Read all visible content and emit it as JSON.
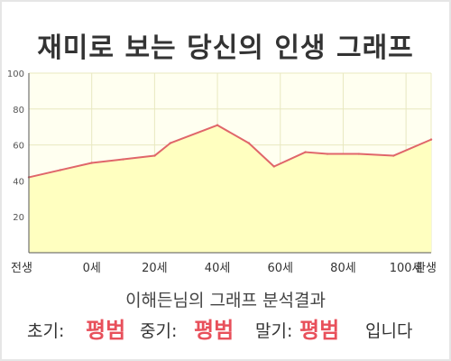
{
  "title": "재미로 보는 당신의 인생 그래프",
  "chart_data": {
    "type": "area",
    "x": [
      -20,
      -10,
      0,
      10,
      20,
      25,
      40,
      50,
      58,
      68,
      75,
      85,
      96,
      108
    ],
    "values": [
      42,
      46,
      50,
      52,
      54,
      61,
      71,
      61,
      48,
      56,
      55,
      55,
      54,
      63
    ],
    "xticks": [
      -20,
      0,
      20,
      40,
      60,
      80,
      100,
      108
    ],
    "xtick_labels": [
      "전생",
      "0세",
      "20세",
      "40세",
      "60세",
      "80세",
      "100세",
      "환생"
    ],
    "yticks": [
      20,
      40,
      60,
      80,
      100
    ],
    "ylim": [
      0,
      100
    ],
    "xlim": [
      -20,
      108
    ],
    "title": "재미로 보는 당신의 인생 그래프",
    "xlabel": "",
    "ylabel": "",
    "grid": true,
    "line_color": "#e0666a",
    "fill_color": "#ffffc0",
    "plot_bg": "#fffff0",
    "grid_color": "#e8e8c0"
  },
  "result": {
    "heading": "이해든님의 그래프 분석결과",
    "early_label": "초기:",
    "early_value": "평범",
    "middle_label": "중기:",
    "middle_value": "평범",
    "late_label": "말기:",
    "late_value": "평범",
    "suffix": "입니다"
  }
}
